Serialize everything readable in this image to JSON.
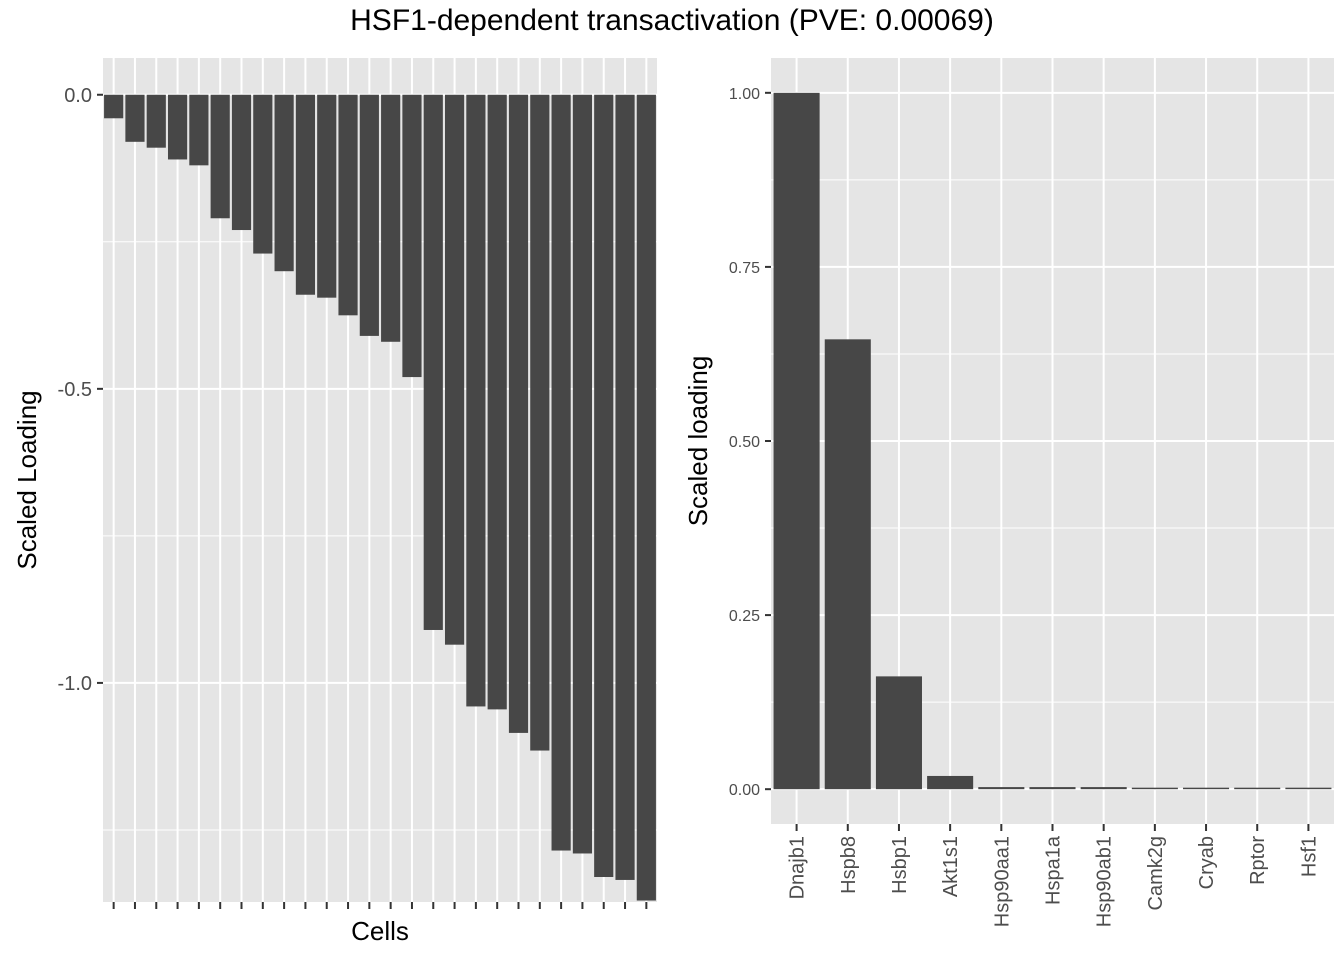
{
  "title": "HSF1-dependent transactivation (PVE: 0.00069)",
  "colors": {
    "panel_bg": "#e5e5e5",
    "grid": "#ffffff",
    "bar": "#474747",
    "tick_text": "#4d4d4d",
    "axis_title": "#000000"
  },
  "chart_data": [
    {
      "type": "bar",
      "xlabel": "Cells",
      "ylabel": "Scaled Loading",
      "ylim": [
        -1.3725,
        0.0625
      ],
      "yticks": [
        0.0,
        -0.5,
        -1.0
      ],
      "ytick_labels": [
        "0.0",
        "-0.5",
        "-1.0"
      ],
      "x_tick_labels_visible": false,
      "grid": true,
      "values": [
        -0.04,
        -0.08,
        -0.09,
        -0.11,
        -0.12,
        -0.21,
        -0.23,
        -0.27,
        -0.3,
        -0.34,
        -0.345,
        -0.375,
        -0.41,
        -0.42,
        -0.48,
        -0.91,
        -0.935,
        -1.04,
        -1.045,
        -1.085,
        -1.115,
        -1.285,
        -1.29,
        -1.33,
        -1.335,
        -1.37
      ]
    },
    {
      "type": "bar",
      "xlabel": "",
      "ylabel": "Scaled loading",
      "ylim": [
        -0.05,
        1.05
      ],
      "yticks": [
        0.0,
        0.25,
        0.5,
        0.75,
        1.0
      ],
      "ytick_labels": [
        "0.00",
        "0.25",
        "0.50",
        "0.75",
        "1.00"
      ],
      "grid": true,
      "categories": [
        "Dnajb1",
        "Hspb8",
        "Hsbp1",
        "Akt1s1",
        "Hsp90aa1",
        "Hspa1a",
        "Hsp90ab1",
        "Camk2g",
        "Cryab",
        "Rptor",
        "Hsf1"
      ],
      "values": [
        1.0,
        0.646,
        0.162,
        0.019,
        0.003,
        0.003,
        0.003,
        0.002,
        0.002,
        0.002,
        0.001
      ]
    }
  ]
}
